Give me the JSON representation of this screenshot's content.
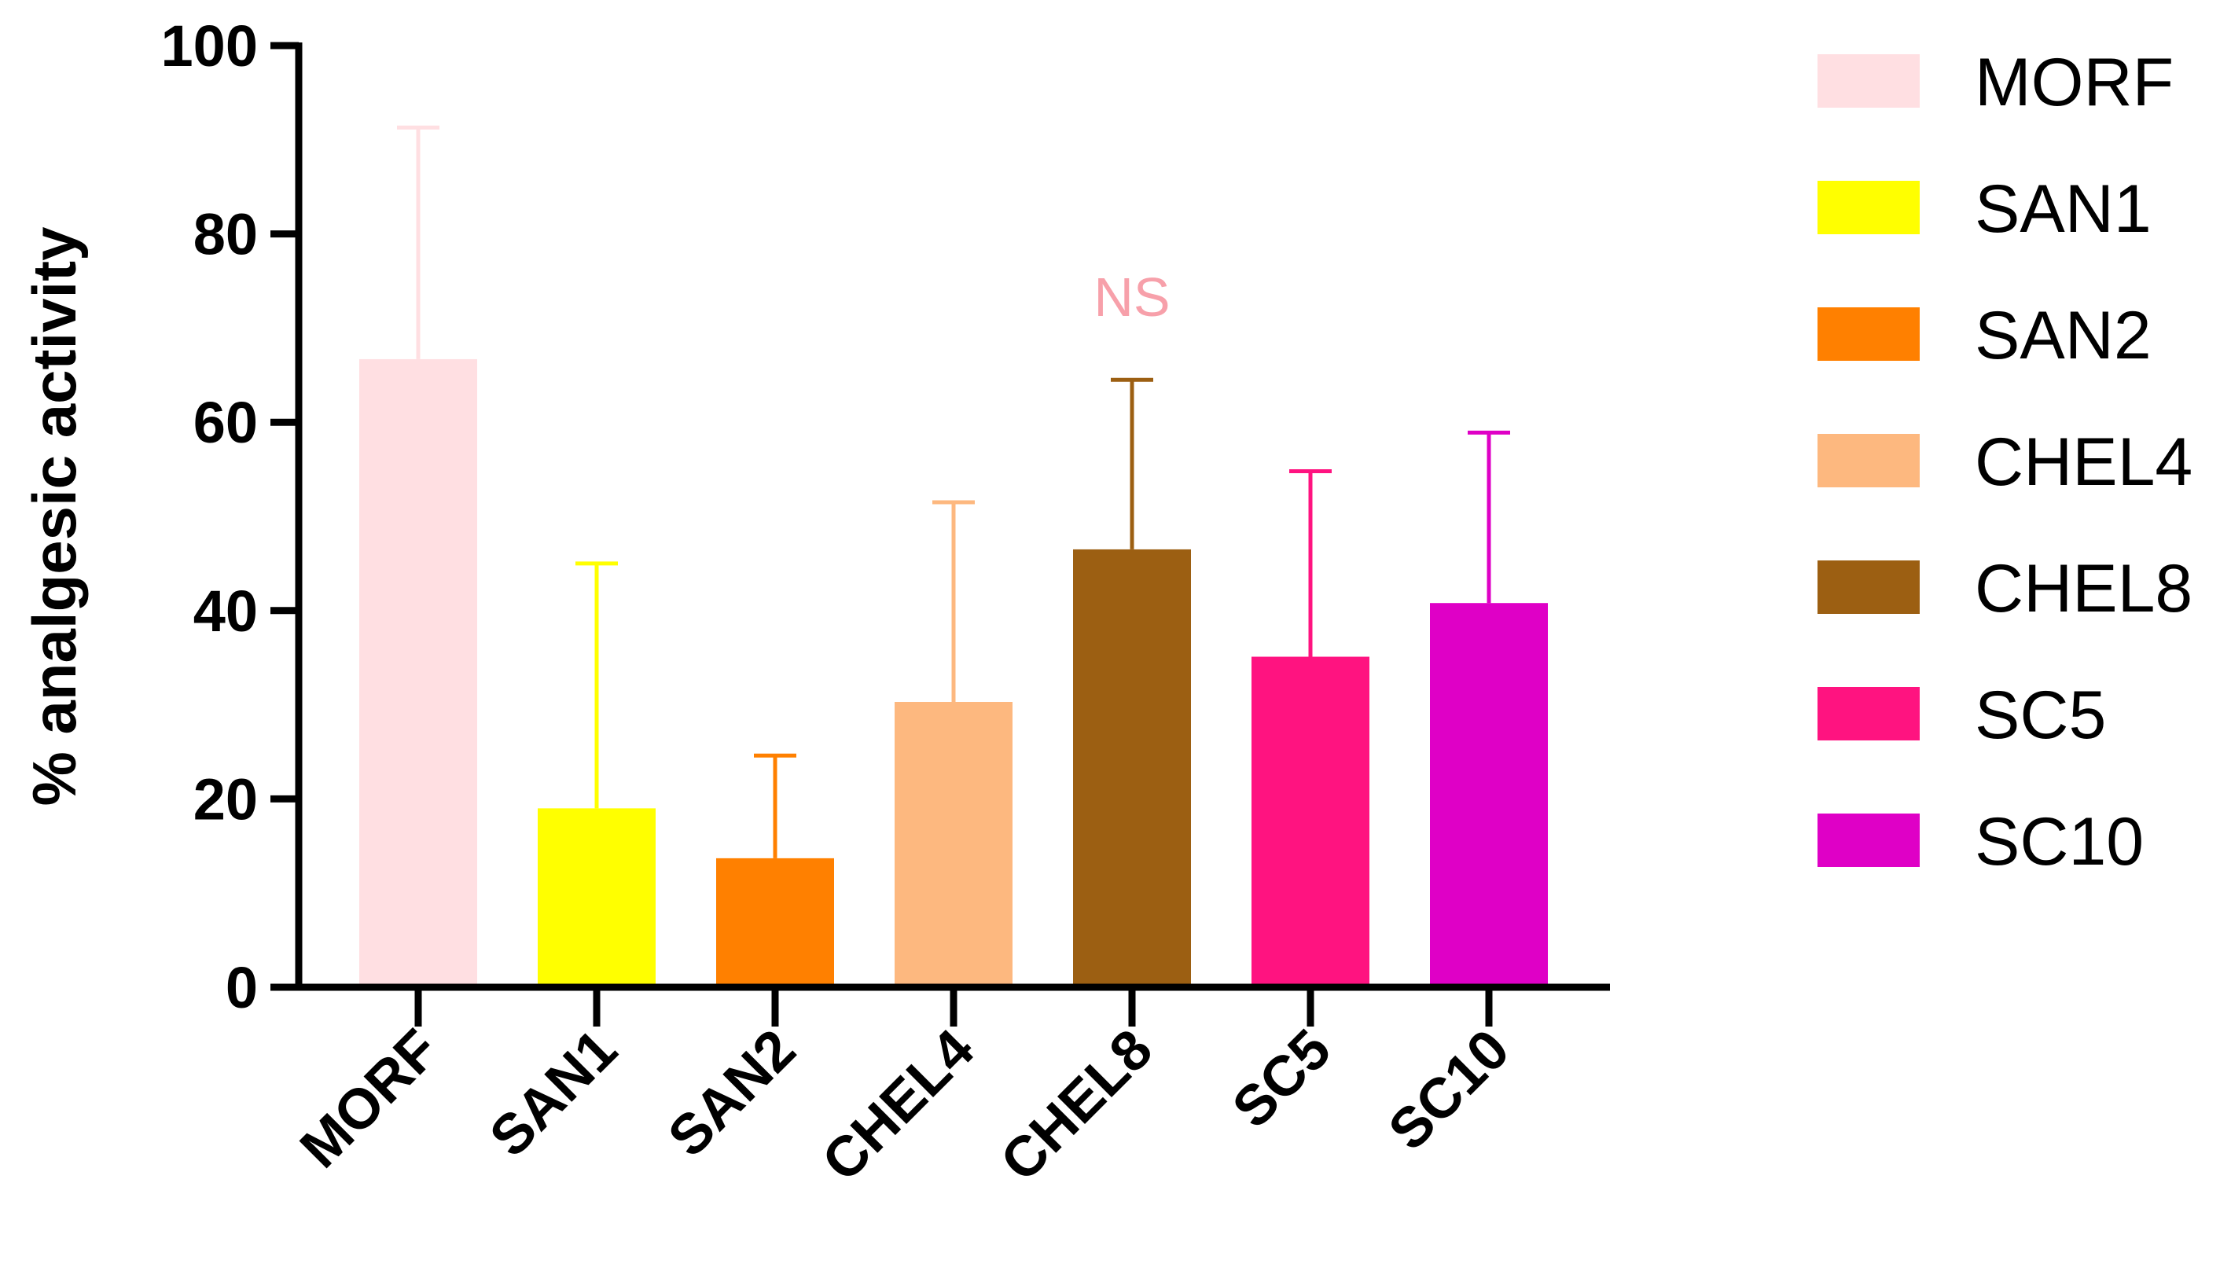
{
  "chart_data": {
    "type": "bar",
    "title": "",
    "xlabel": "",
    "ylabel": "% analgesic activity",
    "ylim": [
      0,
      100
    ],
    "yticks": [
      0,
      20,
      40,
      60,
      80,
      100
    ],
    "grid": false,
    "legend_position": "right",
    "categories": [
      "MORF",
      "SAN1",
      "SAN2",
      "CHEL4",
      "CHEL8",
      "SC5",
      "SC10"
    ],
    "values": [
      66.7,
      19.0,
      13.7,
      30.3,
      46.5,
      35.1,
      40.8
    ],
    "error_upper": [
      91.3,
      45.0,
      24.6,
      51.5,
      64.5,
      54.8,
      58.9
    ],
    "colors": [
      "#FFDFE2",
      "#FFFF00",
      "#FF8000",
      "#FDB87F",
      "#9C5F12",
      "#FF1380",
      "#DF00C6"
    ],
    "annotations": [
      {
        "category": "CHEL8",
        "text": "NS",
        "color": "#F7A0AA"
      }
    ],
    "legend": [
      {
        "label": "MORF",
        "color": "#FFDFE2"
      },
      {
        "label": "SAN1",
        "color": "#FFFF00"
      },
      {
        "label": "SAN2",
        "color": "#FF8000"
      },
      {
        "label": "CHEL4",
        "color": "#FDB87F"
      },
      {
        "label": "CHEL8",
        "color": "#9C5F12"
      },
      {
        "label": "SC5",
        "color": "#FF1380"
      },
      {
        "label": "SC10",
        "color": "#DF00C6"
      }
    ]
  }
}
